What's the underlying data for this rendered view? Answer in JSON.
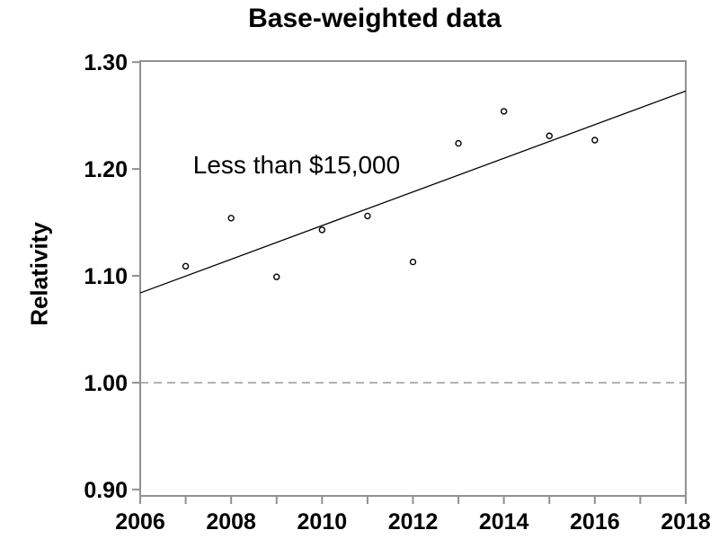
{
  "chart_data": {
    "type": "scatter",
    "title": "Base-weighted data",
    "ylabel": "Relativity",
    "xlabel": "",
    "annotation": {
      "text": "Less than $15,000",
      "x": 2009.4,
      "y": 1.203
    },
    "points": [
      {
        "x": 2007,
        "y": 1.109
      },
      {
        "x": 2008,
        "y": 1.154
      },
      {
        "x": 2009,
        "y": 1.099
      },
      {
        "x": 2010,
        "y": 1.143
      },
      {
        "x": 2011,
        "y": 1.156
      },
      {
        "x": 2012,
        "y": 1.113
      },
      {
        "x": 2013,
        "y": 1.224
      },
      {
        "x": 2014,
        "y": 1.254
      },
      {
        "x": 2015,
        "y": 1.231
      },
      {
        "x": 2016,
        "y": 1.227
      }
    ],
    "trend_line": {
      "x1": 2006,
      "y1": 1.084,
      "x2": 2018,
      "y2": 1.273
    },
    "reference_line": {
      "y": 1.0,
      "style": "dashed"
    },
    "xlim": [
      2006,
      2018
    ],
    "ylim": [
      0.894,
      1.301
    ],
    "xticks_minor": [
      2006,
      2007,
      2008,
      2009,
      2010,
      2011,
      2012,
      2013,
      2014,
      2015,
      2016,
      2017,
      2018
    ],
    "xtick_labels": [
      "2006",
      "2008",
      "2010",
      "2012",
      "2014",
      "2016",
      "2018"
    ],
    "xtick_label_values": [
      2006,
      2008,
      2010,
      2012,
      2014,
      2016,
      2018
    ],
    "ytick_labels": [
      "0.90",
      "1.00",
      "1.10",
      "1.20",
      "1.30"
    ],
    "ytick_values": [
      0.9,
      1.0,
      1.1,
      1.2,
      1.3
    ],
    "grid": "off",
    "legend": "none",
    "colors": {
      "frame": "#909095",
      "tick": "#909095",
      "reference_line": "#999999",
      "data": "#000000",
      "text": "#000000",
      "background": "#ffffff"
    }
  }
}
